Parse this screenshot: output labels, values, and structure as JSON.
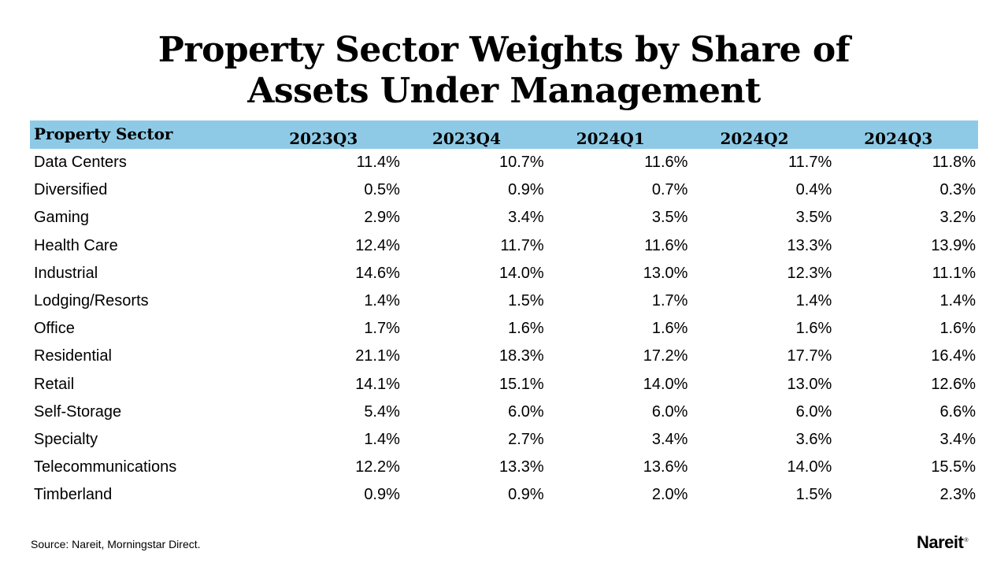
{
  "chart_data": {
    "type": "table",
    "title_lines": [
      "Property Sector Weights by Share of",
      "Assets Under Management"
    ],
    "columns": [
      "Property Sector",
      "2023Q3",
      "2023Q4",
      "2024Q1",
      "2024Q2",
      "2024Q3"
    ],
    "rows": [
      {
        "sector": "Data Centers",
        "values": [
          "11.4%",
          "10.7%",
          "11.6%",
          "11.7%",
          "11.8%"
        ]
      },
      {
        "sector": "Diversified",
        "values": [
          "0.5%",
          "0.9%",
          "0.7%",
          "0.4%",
          "0.3%"
        ]
      },
      {
        "sector": "Gaming",
        "values": [
          "2.9%",
          "3.4%",
          "3.5%",
          "3.5%",
          "3.2%"
        ]
      },
      {
        "sector": "Health Care",
        "values": [
          "12.4%",
          "11.7%",
          "11.6%",
          "13.3%",
          "13.9%"
        ]
      },
      {
        "sector": "Industrial",
        "values": [
          "14.6%",
          "14.0%",
          "13.0%",
          "12.3%",
          "11.1%"
        ]
      },
      {
        "sector": "Lodging/Resorts",
        "values": [
          "1.4%",
          "1.5%",
          "1.7%",
          "1.4%",
          "1.4%"
        ]
      },
      {
        "sector": "Office",
        "values": [
          "1.7%",
          "1.6%",
          "1.6%",
          "1.6%",
          "1.6%"
        ]
      },
      {
        "sector": "Residential",
        "values": [
          "21.1%",
          "18.3%",
          "17.2%",
          "17.7%",
          "16.4%"
        ]
      },
      {
        "sector": "Retail",
        "values": [
          "14.1%",
          "15.1%",
          "14.0%",
          "13.0%",
          "12.6%"
        ]
      },
      {
        "sector": "Self-Storage",
        "values": [
          "5.4%",
          "6.0%",
          "6.0%",
          "6.0%",
          "6.6%"
        ]
      },
      {
        "sector": "Specialty",
        "values": [
          "1.4%",
          "2.7%",
          "3.4%",
          "3.6%",
          "3.4%"
        ]
      },
      {
        "sector": "Telecommunications",
        "values": [
          "12.2%",
          "13.3%",
          "13.6%",
          "14.0%",
          "15.5%"
        ]
      },
      {
        "sector": "Timberland",
        "values": [
          "0.9%",
          "0.9%",
          "2.0%",
          "1.5%",
          "2.3%"
        ]
      }
    ],
    "header_color": "#8ecae6"
  },
  "footer": {
    "source": "Source: Nareit, Morningstar Direct.",
    "logo_text": "Nareit",
    "logo_mark": "®"
  }
}
